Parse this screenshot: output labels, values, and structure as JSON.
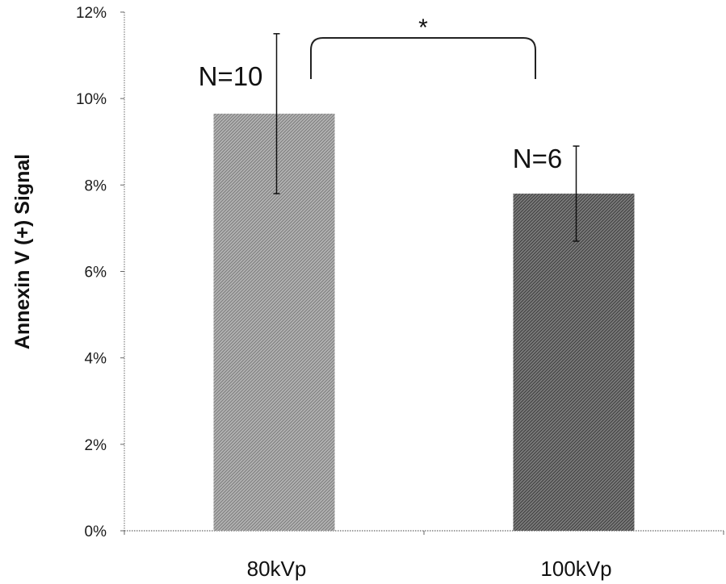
{
  "chart_data": {
    "type": "bar",
    "ylabel": "Annexin V (+) Signal",
    "xlabel": "",
    "title": "",
    "ylim": [
      0,
      12
    ],
    "y_unit": "%",
    "yticks": [
      "0%",
      "2%",
      "4%",
      "6%",
      "8%",
      "10%",
      "12%"
    ],
    "categories": [
      "80kVp",
      "100kVp"
    ],
    "values": [
      9.65,
      7.8
    ],
    "error_upper": [
      11.5,
      8.9
    ],
    "error_lower": [
      7.8,
      6.7
    ],
    "annotations": [
      "N=10",
      "N=6"
    ],
    "significance": {
      "between": [
        "80kVp",
        "100kVp"
      ],
      "label": "*"
    },
    "grid": false,
    "legend": "none",
    "colors": {
      "bar_80kVp": "#a8a8a8",
      "bar_100kVp": "#6e6e6e"
    }
  }
}
